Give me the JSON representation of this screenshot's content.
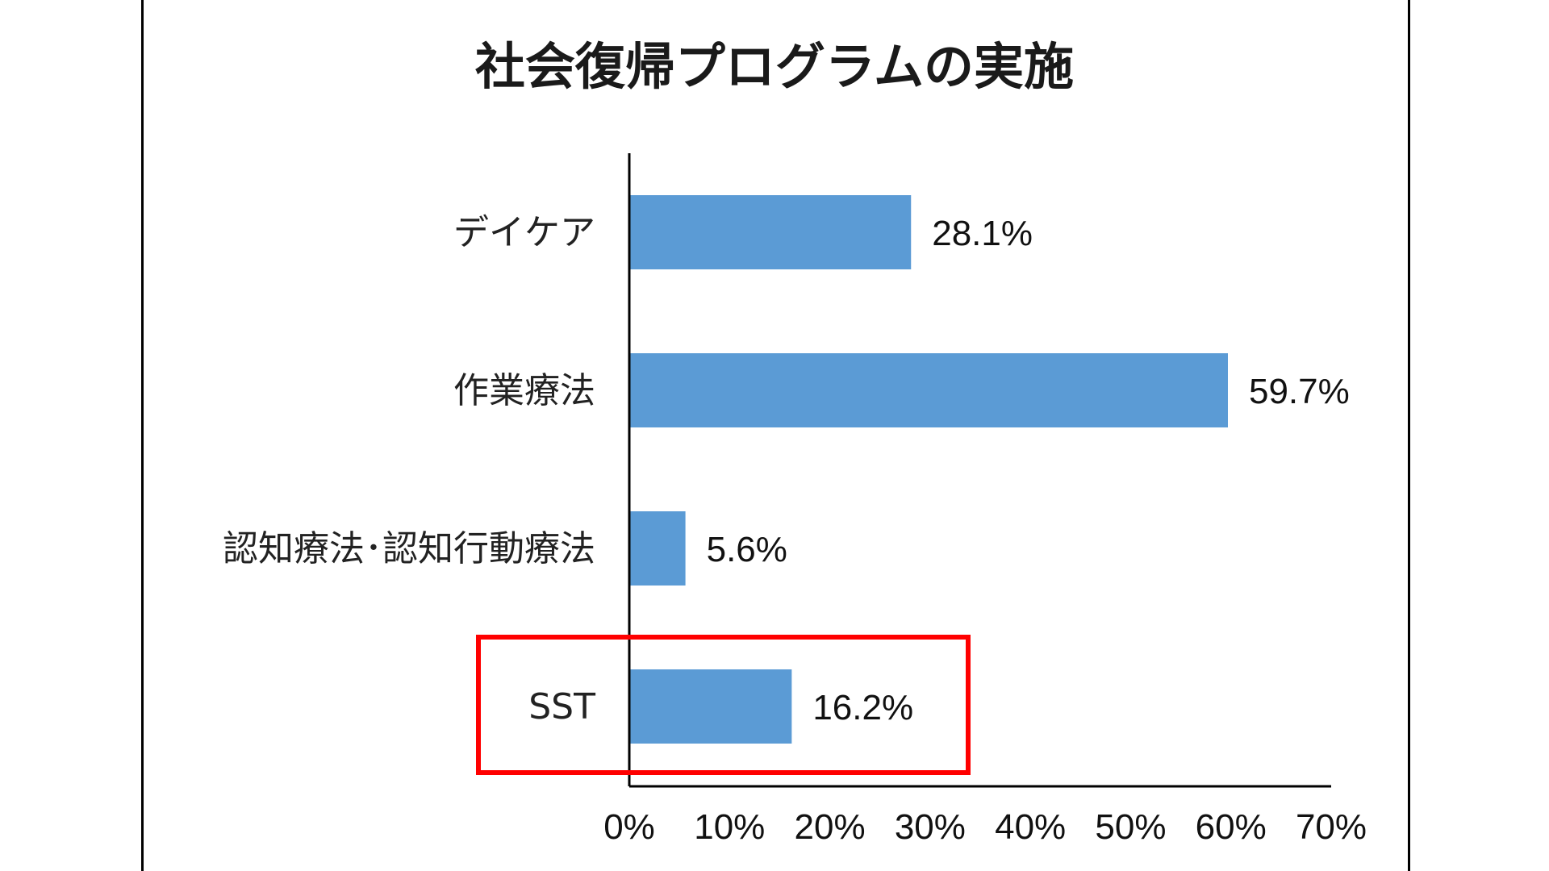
{
  "chart_data": {
    "type": "bar",
    "orientation": "horizontal",
    "title": "社会復帰プログラムの実施",
    "categories": [
      "デイケア",
      "作業療法",
      "認知療法･認知行動療法",
      "SST"
    ],
    "values": [
      28.1,
      59.7,
      5.6,
      16.2
    ],
    "value_labels": [
      "28.1%",
      "59.7%",
      "5.6%",
      "16.2%"
    ],
    "xlim": [
      0,
      70
    ],
    "x_ticks": [
      "0%",
      "10%",
      "20%",
      "30%",
      "40%",
      "50%",
      "60%",
      "70%"
    ],
    "grid": false,
    "legend": "none",
    "highlighted_category": "SST"
  },
  "colors": {
    "bar": "#5B9BD5",
    "highlight": "#FF0000",
    "axis": "#000000"
  }
}
